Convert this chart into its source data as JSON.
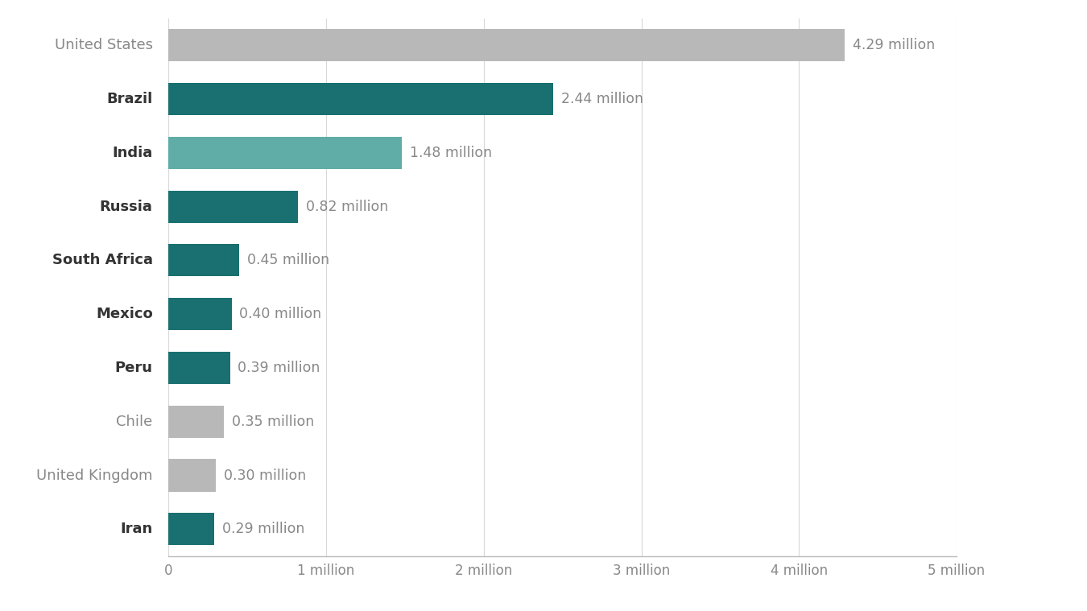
{
  "countries": [
    "United States",
    "Brazil",
    "India",
    "Russia",
    "South Africa",
    "Mexico",
    "Peru",
    "Chile",
    "United Kingdom",
    "Iran"
  ],
  "values": [
    4.29,
    2.44,
    1.48,
    0.82,
    0.45,
    0.4,
    0.39,
    0.35,
    0.3,
    0.29
  ],
  "labels": [
    "4.29 million",
    "2.44 million",
    "1.48 million",
    "0.82 million",
    "0.45 million",
    "0.40 million",
    "0.39 million",
    "0.35 million",
    "0.30 million",
    "0.29 million"
  ],
  "colors": [
    "#b8b8b8",
    "#1a7070",
    "#5fada6",
    "#1a7070",
    "#1a7070",
    "#1a7070",
    "#1a7070",
    "#b8b8b8",
    "#b8b8b8",
    "#1a7070"
  ],
  "bold_labels": [
    false,
    true,
    true,
    true,
    true,
    true,
    true,
    false,
    false,
    true
  ],
  "xlim": [
    0,
    5
  ],
  "xticks": [
    0,
    1,
    2,
    3,
    4,
    5
  ],
  "xtick_labels": [
    "0",
    "1 million",
    "2 million",
    "3 million",
    "4 million",
    "5 million"
  ],
  "background_color": "#ffffff",
  "bar_height": 0.6,
  "label_fontsize": 12.5,
  "tick_fontsize": 12,
  "country_fontsize": 13,
  "grid_color": "#d8d8d8",
  "label_color": "#888888",
  "country_color_normal": "#888888",
  "country_color_bold": "#333333"
}
